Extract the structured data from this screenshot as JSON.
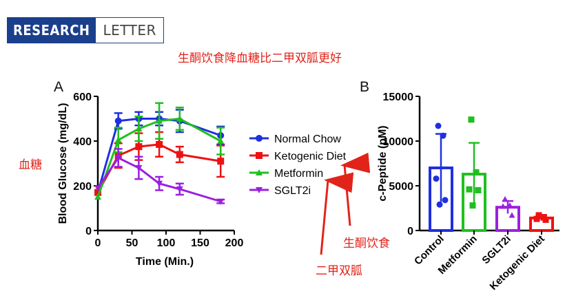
{
  "header": {
    "badge_left": "RESEARCH",
    "badge_right": "LETTER"
  },
  "annotations": {
    "title": "生酮饮食降血糖比二甲双胍更好",
    "blood_sugar": "血糖",
    "ketogenic": "生酮饮食",
    "metformin": "二甲双胍"
  },
  "colors": {
    "blue": "#1f2fe0",
    "red": "#ee1111",
    "green": "#1fbf1f",
    "purple": "#9b1fe0",
    "badge": "#1a3f8c",
    "annot": "#e2231a"
  },
  "chart_data": [
    {
      "panel": "A",
      "type": "line",
      "xlabel": "Time (Min.)",
      "ylabel": "Blood Glucose (mg/dL)",
      "xlim": [
        0,
        200
      ],
      "ylim": [
        0,
        600
      ],
      "xticks": [
        0,
        50,
        100,
        150,
        200
      ],
      "yticks": [
        0,
        200,
        400,
        600
      ],
      "legend_position": "right",
      "series": [
        {
          "name": "Normal Chow",
          "color": "#1f2fe0",
          "marker": "circle",
          "x": [
            0,
            30,
            60,
            90,
            120,
            180
          ],
          "y": [
            170,
            490,
            500,
            500,
            490,
            425
          ],
          "err": [
            0,
            35,
            30,
            30,
            50,
            40
          ]
        },
        {
          "name": "Ketogenic Diet",
          "color": "#ee1111",
          "marker": "square",
          "x": [
            0,
            30,
            60,
            90,
            120,
            180
          ],
          "y": [
            170,
            335,
            375,
            385,
            340,
            310
          ],
          "err": [
            0,
            55,
            60,
            55,
            35,
            70
          ]
        },
        {
          "name": "Metformin",
          "color": "#1fbf1f",
          "marker": "triangle-up",
          "x": [
            0,
            30,
            60,
            90,
            120,
            180
          ],
          "y": [
            150,
            405,
            455,
            490,
            500,
            400
          ],
          "err": [
            0,
            55,
            55,
            80,
            50,
            60
          ]
        },
        {
          "name": "SGLT2i",
          "color": "#9b1fe0",
          "marker": "triangle-down",
          "x": [
            0,
            30,
            60,
            90,
            120,
            180
          ],
          "y": [
            190,
            325,
            280,
            210,
            185,
            130
          ],
          "err": [
            0,
            40,
            50,
            30,
            25,
            8
          ]
        }
      ]
    },
    {
      "panel": "B",
      "type": "bar",
      "ylabel": "c-Peptide (pM)",
      "ylim": [
        0,
        15000
      ],
      "yticks": [
        0,
        5000,
        10000,
        15000
      ],
      "ytick_labels": [
        "0",
        "5000",
        "10000",
        "15000"
      ],
      "categories": [
        "Control",
        "Metformin",
        "SGLT2i",
        "Ketogenic Diet"
      ],
      "colors": [
        "#1f2fe0",
        "#1fbf1f",
        "#9b1fe0",
        "#ee1111"
      ],
      "markers": [
        "circle",
        "square",
        "triangle-up",
        "square"
      ],
      "values": [
        7000,
        6300,
        2600,
        1400
      ],
      "err": [
        3800,
        3500,
        700,
        300
      ],
      "points": [
        [
          11700,
          10600,
          5800,
          3400,
          2900
        ],
        [
          12400,
          6500,
          4600,
          4500,
          2800
        ],
        [
          3500,
          2800,
          2700,
          1700
        ],
        [
          1700,
          1500,
          1300,
          1200
        ]
      ]
    }
  ]
}
